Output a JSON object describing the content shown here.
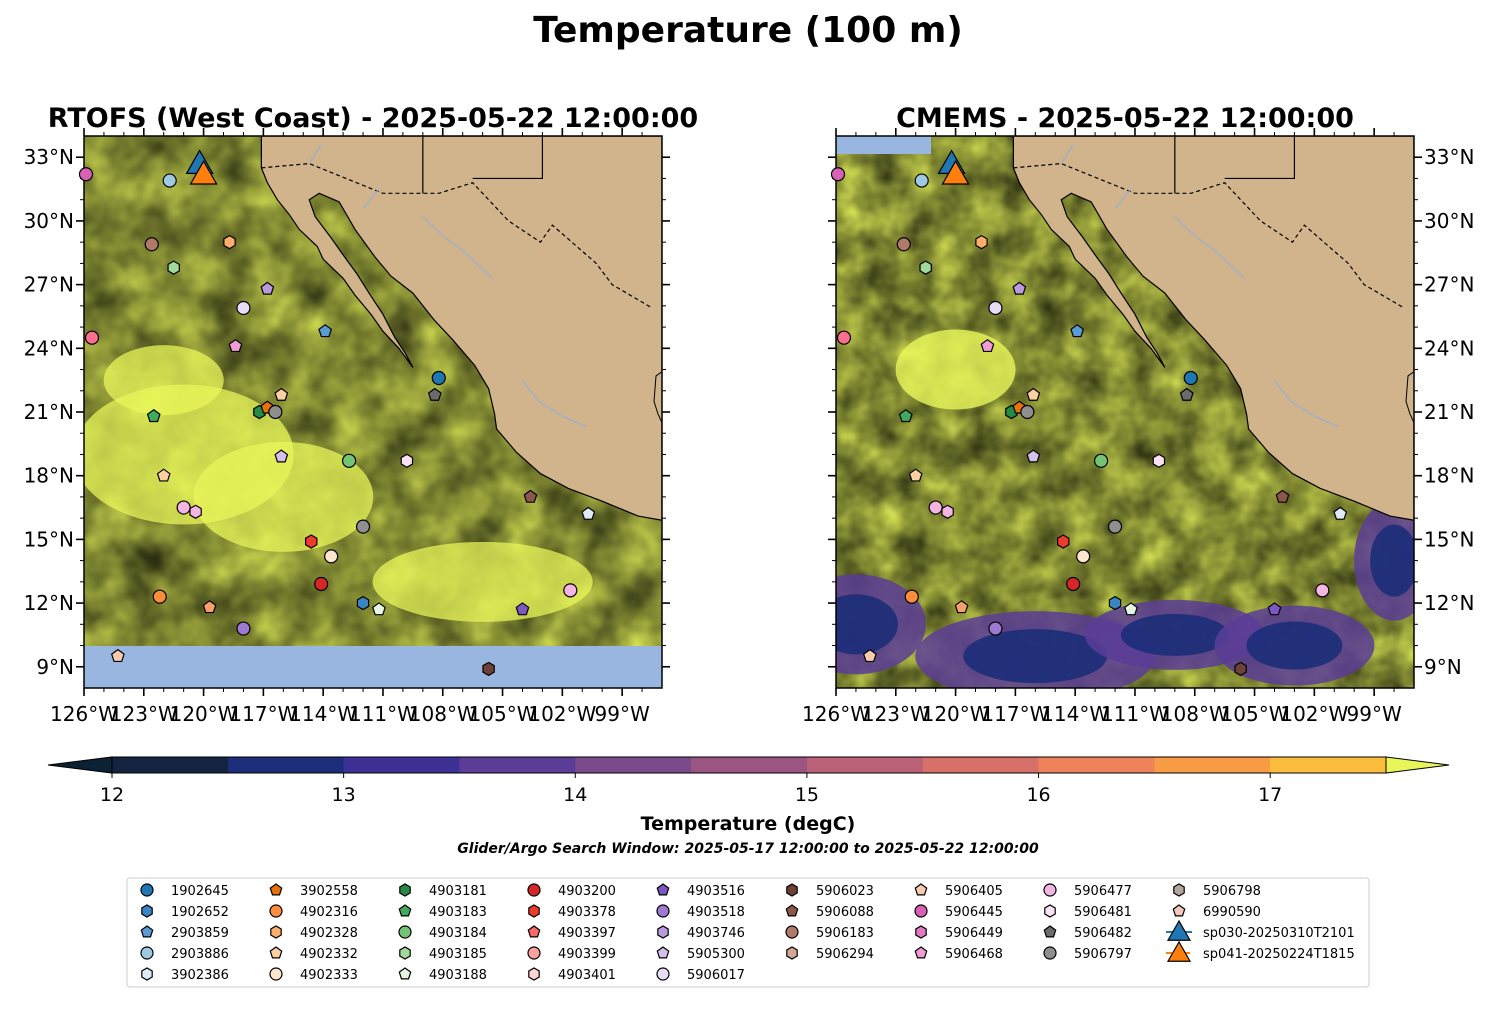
{
  "figure": {
    "suptitle": "Temperature (100 m)",
    "colorbar_label": "Temperature (degC)",
    "search_window": "Glider/Argo Search Window: 2025-05-17 12:00:00 to 2025-05-22 12:00:00"
  },
  "colors": {
    "land": "#d2b48c",
    "ocean_mask": "#98b6e0",
    "river": "#9ab0cc",
    "colormap": [
      "#0a2234",
      "#14233f",
      "#1c2d79",
      "#3e3196",
      "#5b3d97",
      "#7b4a8d",
      "#9a5583",
      "#bb6177",
      "#d8706a",
      "#ef825a",
      "#f89b45",
      "#fbbd3d",
      "#e8f65a"
    ]
  },
  "chart_data": [
    {
      "type": "heatmap",
      "title": "RTOFS (West Coast) - 2025-05-22 12:00:00",
      "x_ticks": [
        "126°W",
        "123°W",
        "120°W",
        "117°W",
        "114°W",
        "111°W",
        "108°W",
        "105°W",
        "102°W",
        "99°W"
      ],
      "y_ticks": [
        "33°N",
        "30°N",
        "27°N",
        "24°N",
        "21°N",
        "18°N",
        "15°N",
        "12°N",
        "9°N"
      ],
      "xlim": [
        -126,
        -97
      ],
      "ylim": [
        8,
        34
      ],
      "ytick_side": "left",
      "no_data_below_lat": 10
    },
    {
      "type": "heatmap",
      "title": "CMEMS - 2025-05-22 12:00:00",
      "x_ticks": [
        "126°W",
        "123°W",
        "120°W",
        "117°W",
        "114°W",
        "111°W",
        "108°W",
        "105°W",
        "102°W",
        "99°W"
      ],
      "y_ticks": [
        "33°N",
        "30°N",
        "27°N",
        "24°N",
        "21°N",
        "18°N",
        "15°N",
        "12°N",
        "9°N"
      ],
      "xlim": [
        -126,
        -97
      ],
      "ylim": [
        8,
        34
      ],
      "ytick_side": "right",
      "no_data_below_lat": null
    }
  ],
  "colorbar": {
    "ticks": [
      12,
      13,
      14,
      15,
      16,
      17
    ],
    "range": [
      12,
      17.5
    ],
    "levels": 11,
    "extend": "both"
  },
  "legend": {
    "placement": "bottom",
    "columns": [
      [
        {
          "label": "1902645",
          "marker": "circle",
          "color": "#1f77b4"
        },
        {
          "label": "1902652",
          "marker": "hexagon",
          "color": "#3a86c4"
        },
        {
          "label": "2903859",
          "marker": "pentagon",
          "color": "#5b9bd5"
        },
        {
          "label": "2903886",
          "marker": "circle",
          "color": "#9ecae1"
        },
        {
          "label": "3902386",
          "marker": "hexagon",
          "color": "#deebf7"
        }
      ],
      [
        {
          "label": "3902558",
          "marker": "pentagon",
          "color": "#e8710a"
        },
        {
          "label": "4902316",
          "marker": "circle",
          "color": "#fd8d3c"
        },
        {
          "label": "4902328",
          "marker": "hexagon",
          "color": "#fdae6b"
        },
        {
          "label": "4902332",
          "marker": "pentagon",
          "color": "#fdd0a2"
        },
        {
          "label": "4902333",
          "marker": "circle",
          "color": "#fee6ce"
        }
      ],
      [
        {
          "label": "4903181",
          "marker": "hexagon",
          "color": "#238b45"
        },
        {
          "label": "4903183",
          "marker": "pentagon",
          "color": "#41ab5d"
        },
        {
          "label": "4903184",
          "marker": "circle",
          "color": "#74c476"
        },
        {
          "label": "4903185",
          "marker": "hexagon",
          "color": "#a1d99b"
        },
        {
          "label": "4903188",
          "marker": "pentagon",
          "color": "#e5f5e0"
        }
      ],
      [
        {
          "label": "4903200",
          "marker": "circle",
          "color": "#d62728"
        },
        {
          "label": "4903378",
          "marker": "hexagon",
          "color": "#ef3b2c"
        },
        {
          "label": "4903397",
          "marker": "pentagon",
          "color": "#fb6a6a"
        },
        {
          "label": "4903399",
          "marker": "circle",
          "color": "#fc9f9f"
        },
        {
          "label": "4903401",
          "marker": "hexagon",
          "color": "#fdd5d5"
        }
      ],
      [
        {
          "label": "4903516",
          "marker": "pentagon",
          "color": "#7e57c2"
        },
        {
          "label": "4903518",
          "marker": "circle",
          "color": "#9e7ad1"
        },
        {
          "label": "4903746",
          "marker": "hexagon",
          "color": "#b79bdd"
        },
        {
          "label": "5905300",
          "marker": "pentagon",
          "color": "#d4c0ed"
        },
        {
          "label": "5906017",
          "marker": "circle",
          "color": "#e8dcf8"
        }
      ],
      [
        {
          "label": "5906023",
          "marker": "hexagon",
          "color": "#6d4038"
        },
        {
          "label": "5906088",
          "marker": "pentagon",
          "color": "#8c564b"
        },
        {
          "label": "5906183",
          "marker": "circle",
          "color": "#b07a6b"
        },
        {
          "label": "5906294",
          "marker": "hexagon",
          "color": "#d4a896"
        },
        {
          "label": "",
          "marker": "none",
          "color": "#ffffff"
        }
      ],
      [
        {
          "label": "5906405",
          "marker": "pentagon",
          "color": "#f7cbb0"
        },
        {
          "label": "5906445",
          "marker": "circle",
          "color": "#d860b5"
        },
        {
          "label": "5906449",
          "marker": "hexagon",
          "color": "#e377c2"
        },
        {
          "label": "5906468",
          "marker": "pentagon",
          "color": "#f09dd6"
        },
        {
          "label": "",
          "marker": "none",
          "color": "#ffffff"
        }
      ],
      [
        {
          "label": "5906477",
          "marker": "circle",
          "color": "#f5b5e2"
        },
        {
          "label": "5906481",
          "marker": "hexagon",
          "color": "#fce0f3"
        },
        {
          "label": "5906482",
          "marker": "pentagon",
          "color": "#6b6b6b"
        },
        {
          "label": "5906797",
          "marker": "circle",
          "color": "#8f8f8f"
        },
        {
          "label": "",
          "marker": "none",
          "color": "#ffffff"
        }
      ],
      [
        {
          "label": "5906798",
          "marker": "hexagon",
          "color": "#b5a59f"
        },
        {
          "label": "6990590",
          "marker": "pentagon",
          "color": "#f2c9bd"
        },
        {
          "label": "sp030-20250310T2101",
          "marker": "triangle",
          "color": "#1f77b4"
        },
        {
          "label": "sp041-20250224T1815",
          "marker": "triangle",
          "color": "#ff7f0e"
        },
        {
          "label": "",
          "marker": "none",
          "color": "#ffffff"
        }
      ]
    ]
  },
  "floats": [
    {
      "lon": -125.9,
      "lat": 32.2,
      "marker": "circle",
      "color": "#d860b5"
    },
    {
      "lon": -121.7,
      "lat": 31.9,
      "marker": "circle",
      "color": "#9ecae1"
    },
    {
      "lon": -122.6,
      "lat": 28.9,
      "marker": "circle",
      "color": "#b07a6b"
    },
    {
      "lon": -118.7,
      "lat": 29.0,
      "marker": "hexagon",
      "color": "#fdae6b"
    },
    {
      "lon": -121.5,
      "lat": 27.8,
      "marker": "hexagon",
      "color": "#a1d99b"
    },
    {
      "lon": -116.8,
      "lat": 26.8,
      "marker": "pentagon",
      "color": "#b79bdd"
    },
    {
      "lon": -118.0,
      "lat": 25.9,
      "marker": "circle",
      "color": "#e8dcf8"
    },
    {
      "lon": -125.6,
      "lat": 24.5,
      "marker": "circle",
      "color": "#fc6e8e"
    },
    {
      "lon": -118.4,
      "lat": 24.1,
      "marker": "pentagon",
      "color": "#f09dd6"
    },
    {
      "lon": -113.9,
      "lat": 24.8,
      "marker": "pentagon",
      "color": "#5b9bd5"
    },
    {
      "lon": -108.2,
      "lat": 22.6,
      "marker": "circle",
      "color": "#1f77b4"
    },
    {
      "lon": -108.4,
      "lat": 21.8,
      "marker": "pentagon",
      "color": "#6b6b6b"
    },
    {
      "lon": -116.1,
      "lat": 21.8,
      "marker": "pentagon",
      "color": "#fdd0a2"
    },
    {
      "lon": -122.5,
      "lat": 20.8,
      "marker": "pentagon",
      "color": "#41ab5d"
    },
    {
      "lon": -117.2,
      "lat": 21.0,
      "marker": "hexagon",
      "color": "#238b45"
    },
    {
      "lon": -116.8,
      "lat": 21.2,
      "marker": "pentagon",
      "color": "#e8710a"
    },
    {
      "lon": -116.4,
      "lat": 21.0,
      "marker": "circle",
      "color": "#8f8f8f"
    },
    {
      "lon": -116.1,
      "lat": 18.9,
      "marker": "pentagon",
      "color": "#d4c0ed"
    },
    {
      "lon": -112.7,
      "lat": 18.7,
      "marker": "circle",
      "color": "#74c476"
    },
    {
      "lon": -109.8,
      "lat": 18.7,
      "marker": "hexagon",
      "color": "#fce0f3"
    },
    {
      "lon": -122.0,
      "lat": 18.0,
      "marker": "pentagon",
      "color": "#fdd0a2"
    },
    {
      "lon": -103.6,
      "lat": 17.0,
      "marker": "pentagon",
      "color": "#8c564b"
    },
    {
      "lon": -121.0,
      "lat": 16.5,
      "marker": "circle",
      "color": "#f5b5e2"
    },
    {
      "lon": -120.4,
      "lat": 16.3,
      "marker": "hexagon",
      "color": "#f5b5e2"
    },
    {
      "lon": -112.0,
      "lat": 15.6,
      "marker": "circle",
      "color": "#8f8f8f"
    },
    {
      "lon": -100.7,
      "lat": 16.2,
      "marker": "pentagon",
      "color": "#deebf7"
    },
    {
      "lon": -114.6,
      "lat": 14.9,
      "marker": "hexagon",
      "color": "#ef3b2c"
    },
    {
      "lon": -113.6,
      "lat": 14.2,
      "marker": "circle",
      "color": "#fee6ce"
    },
    {
      "lon": -114.1,
      "lat": 12.9,
      "marker": "circle",
      "color": "#d62728"
    },
    {
      "lon": -122.2,
      "lat": 12.3,
      "marker": "circle",
      "color": "#fd8d3c"
    },
    {
      "lon": -119.7,
      "lat": 11.8,
      "marker": "pentagon",
      "color": "#f7a06b"
    },
    {
      "lon": -112.0,
      "lat": 12.0,
      "marker": "hexagon",
      "color": "#3a86c4"
    },
    {
      "lon": -111.2,
      "lat": 11.7,
      "marker": "pentagon",
      "color": "#e5f5e0"
    },
    {
      "lon": -104.0,
      "lat": 11.7,
      "marker": "pentagon",
      "color": "#7e57c2"
    },
    {
      "lon": -101.6,
      "lat": 12.6,
      "marker": "circle",
      "color": "#f5b5e2"
    },
    {
      "lon": -118.0,
      "lat": 10.8,
      "marker": "circle",
      "color": "#9e7ad1"
    },
    {
      "lon": -124.3,
      "lat": 9.5,
      "marker": "pentagon",
      "color": "#f7cbb0"
    },
    {
      "lon": -105.7,
      "lat": 8.9,
      "marker": "hexagon",
      "color": "#6d4038"
    }
  ],
  "gliders": [
    {
      "lon": -120.2,
      "lat": 32.7,
      "color": "#1f77b4"
    },
    {
      "lon": -120.0,
      "lat": 32.2,
      "color": "#ff7f0e"
    }
  ]
}
